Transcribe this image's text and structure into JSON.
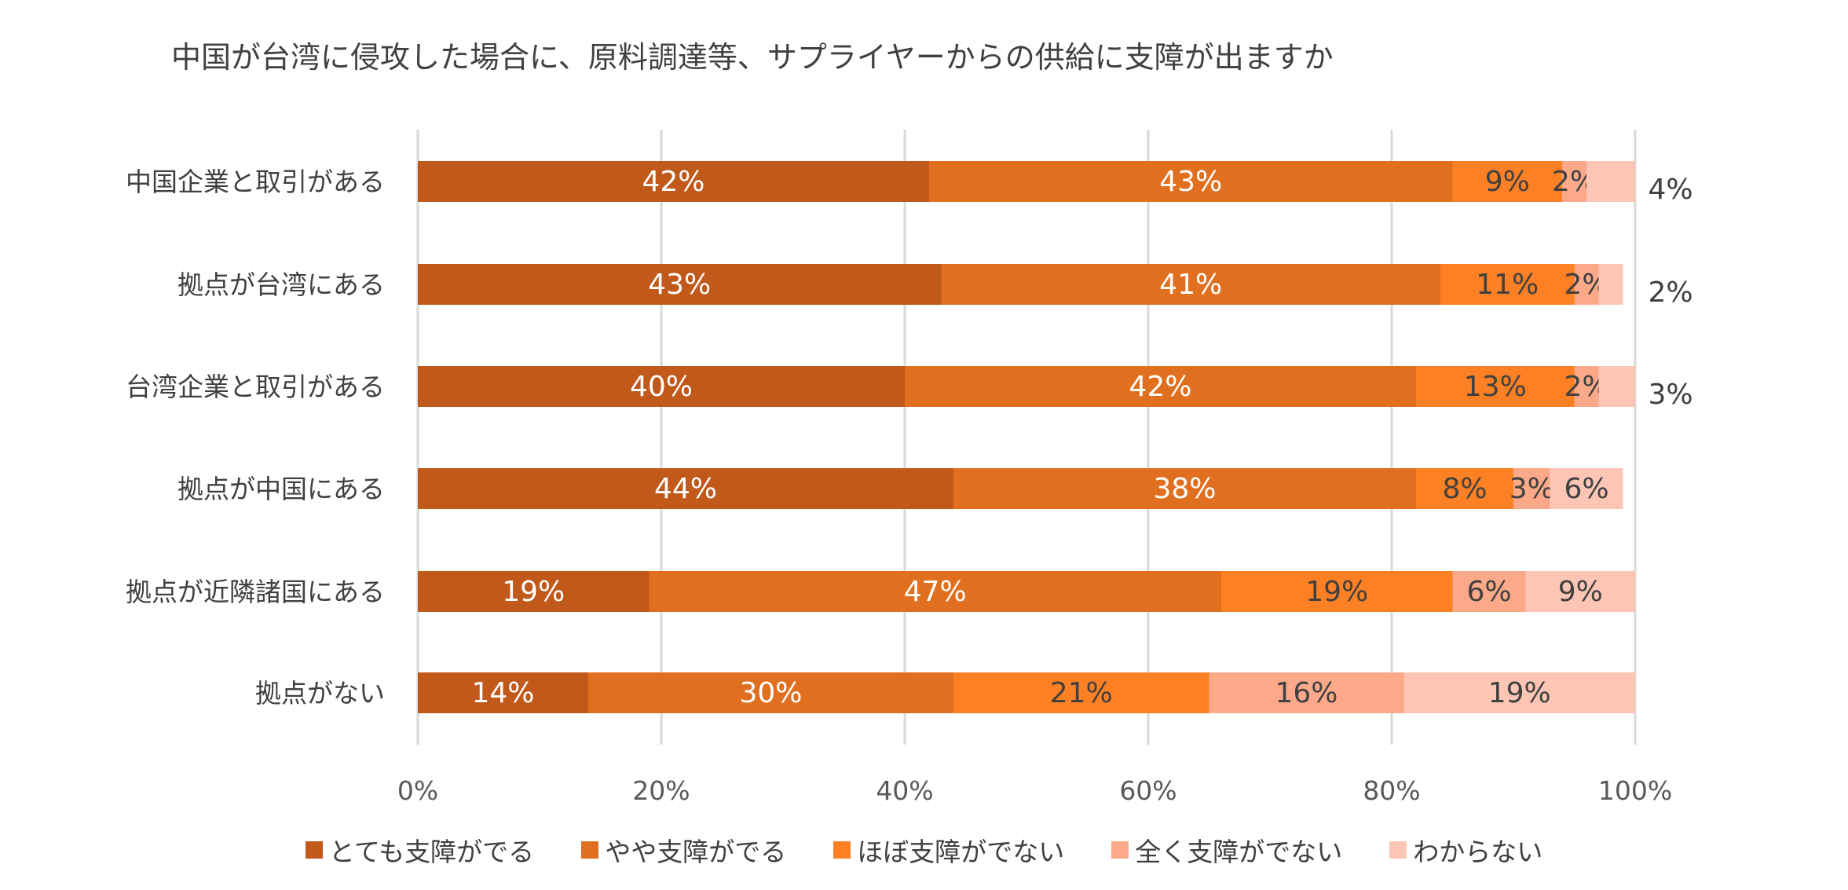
{
  "chart_data": {
    "type": "bar",
    "orientation": "horizontal",
    "stacked": "percent",
    "title": "中国が台湾に侵攻した場合に、原料調達等、サプライヤーからの供給に支障が出ますか",
    "categories": [
      "中国企業と取引がある",
      "拠点が台湾にある",
      "台湾企業と取引がある",
      "拠点が中国にある",
      "拠点が近隣諸国にある",
      "拠点がない"
    ],
    "series": [
      {
        "name": "とても支障がでる",
        "color": "#C0591A",
        "label_color": "#FFFFFF",
        "values": [
          42,
          43,
          40,
          44,
          19,
          14
        ]
      },
      {
        "name": "やや支障がでる",
        "color": "#E0701F",
        "label_color": "#FFFFFF",
        "values": [
          43,
          41,
          42,
          38,
          47,
          30
        ]
      },
      {
        "name": "ほぼ支障がでない",
        "color": "#FD8024",
        "label_color": "#404040",
        "values": [
          9,
          11,
          13,
          8,
          19,
          21
        ]
      },
      {
        "name": "全く支障がでない",
        "color": "#FCA98A",
        "label_color": "#404040",
        "values": [
          2,
          2,
          2,
          3,
          6,
          16
        ]
      },
      {
        "name": "わからない",
        "color": "#FDC6B4",
        "label_color": "#404040",
        "values": [
          4,
          2,
          3,
          6,
          9,
          19
        ],
        "label_outside": [
          true,
          true,
          true,
          false,
          false,
          false
        ]
      }
    ],
    "xlim": [
      0,
      100
    ],
    "xticks": [
      "0%",
      "20%",
      "40%",
      "60%",
      "80%",
      "100%"
    ],
    "grid": true,
    "legend": "bottom"
  }
}
